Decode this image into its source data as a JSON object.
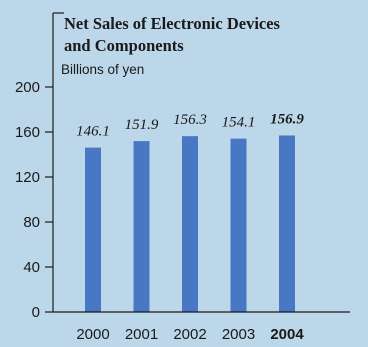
{
  "chart_data": {
    "type": "bar",
    "title_lines": [
      "Net Sales of Electronic Devices",
      "and Components"
    ],
    "ylabel": "Billions of yen",
    "xlabel": "",
    "categories": [
      "2000",
      "2001",
      "2002",
      "2003",
      "2004"
    ],
    "values": [
      146.1,
      151.9,
      156.3,
      154.1,
      156.9
    ],
    "value_labels": [
      "146.1",
      "151.9",
      "156.3",
      "154.1",
      "156.9"
    ],
    "highlight": "2004",
    "ylim": [
      0,
      200
    ],
    "yticks": [
      0,
      40,
      80,
      120,
      160,
      200
    ],
    "grid": false,
    "legend": "none",
    "colors": {
      "bar": "#4878c4",
      "background": "#bcd7ea",
      "axis": "#1a1a1a"
    }
  }
}
